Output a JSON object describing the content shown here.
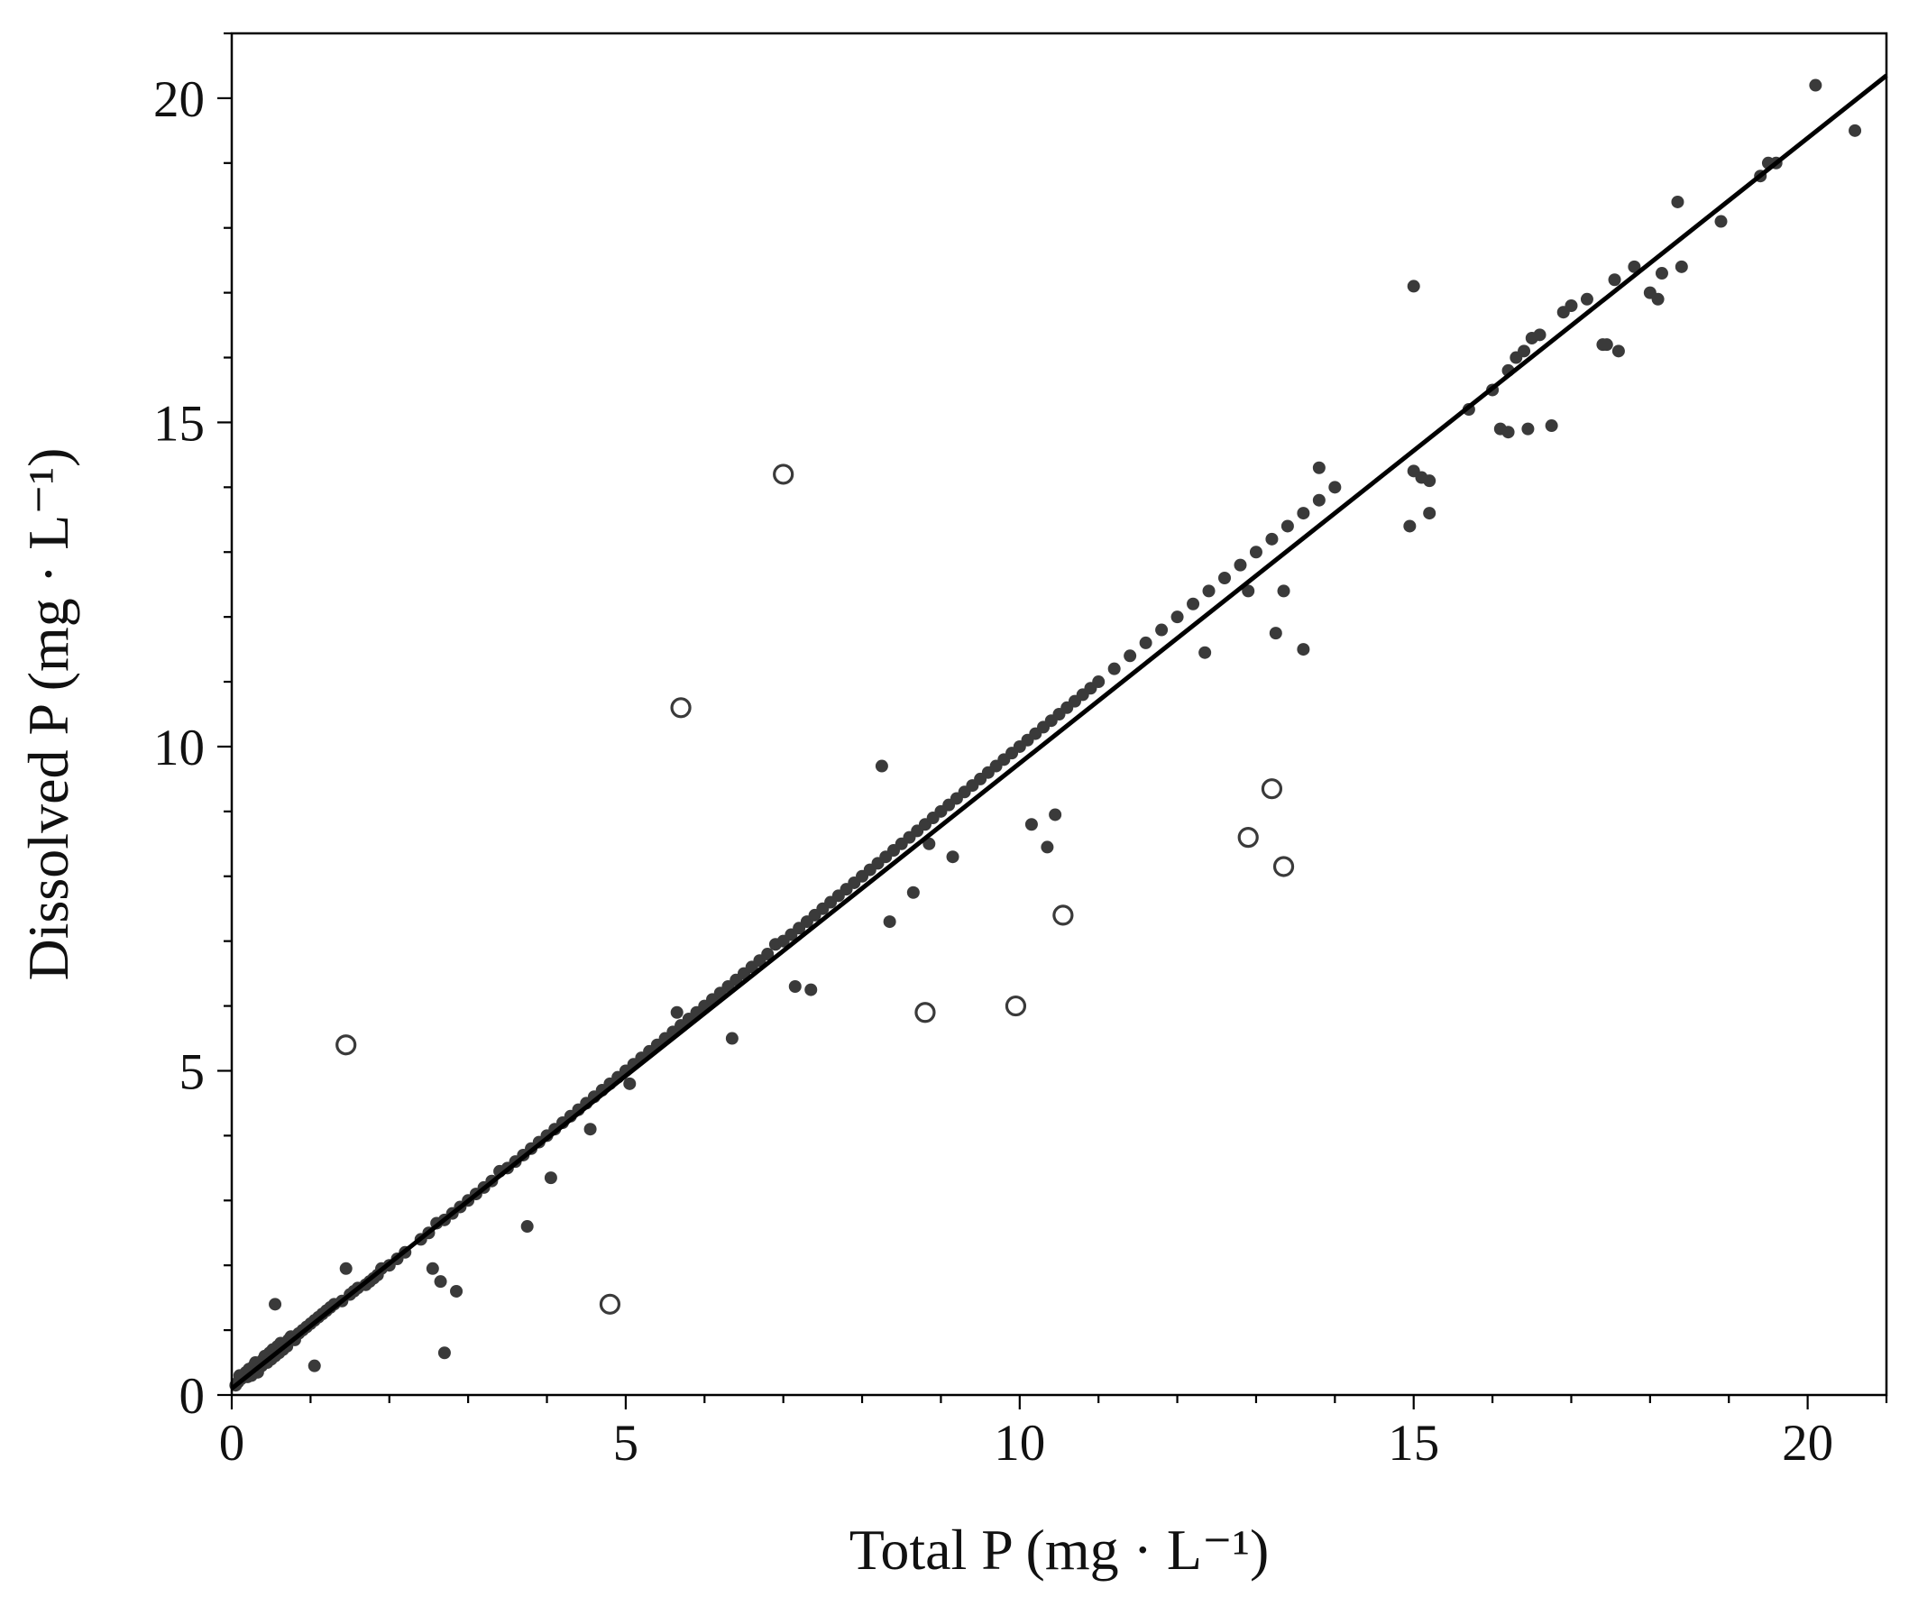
{
  "chart_data": {
    "type": "scatter",
    "title": "",
    "xlabel": "Total P (mg · L⁻¹)",
    "ylabel": "Dissolved P (mg · L⁻¹)",
    "xlim": [
      0,
      21
    ],
    "ylim": [
      0,
      21
    ],
    "x_ticks": [
      "0",
      "5",
      "10",
      "15",
      "20"
    ],
    "y_ticks": [
      "0",
      "5",
      "10",
      "15",
      "20"
    ],
    "x_tick_values": [
      0,
      5,
      10,
      15,
      20
    ],
    "y_tick_values": [
      0,
      5,
      10,
      15,
      20
    ],
    "grid": false,
    "legend": "none",
    "colors": {
      "filled": "#3a3a3a",
      "open_stroke": "#3a3a3a",
      "fit_line": "#000000",
      "axes": "#000000"
    },
    "fit_line": {
      "x": [
        0,
        21
      ],
      "y": [
        0.1,
        20.35
      ]
    },
    "series": [
      {
        "marker": "filled",
        "x": [
          0.05,
          0.08,
          0.1,
          0.12,
          0.15,
          0.18,
          0.2,
          0.22,
          0.25,
          0.28,
          0.3,
          0.33,
          0.35,
          0.38,
          0.4,
          0.42,
          0.45,
          0.48,
          0.5,
          0.52,
          0.55,
          0.58,
          0.6,
          0.62,
          0.65,
          0.7,
          0.72,
          0.75,
          0.8,
          0.85,
          0.9,
          0.95,
          1.0,
          1.05,
          1.1,
          1.15,
          1.2,
          1.25,
          1.3,
          1.4,
          1.5,
          1.55,
          1.6,
          1.7,
          1.75,
          1.8,
          1.85,
          1.9,
          2.0,
          2.1,
          2.2,
          2.4,
          2.5,
          2.6,
          2.7,
          2.8,
          2.9,
          3.0,
          3.1,
          3.2,
          3.3,
          3.4,
          3.5,
          3.6,
          3.7,
          3.8,
          3.9,
          4.0,
          4.1,
          4.2,
          4.3,
          4.4,
          4.5,
          4.6,
          4.7,
          4.8,
          4.9,
          5.0,
          5.1,
          5.2,
          5.3,
          5.4,
          5.5,
          5.6,
          5.7,
          5.8,
          5.9,
          6.0,
          6.1,
          6.2,
          6.3,
          6.4,
          6.5,
          6.6,
          6.7,
          6.8,
          6.9,
          7.0,
          7.1,
          7.2,
          7.3,
          7.4,
          7.5,
          7.6,
          7.7,
          7.8,
          7.9,
          8.0,
          8.1,
          8.2,
          8.3,
          8.4,
          8.5,
          8.6,
          8.7,
          8.8,
          8.9,
          9.0,
          9.1,
          9.2,
          9.3,
          9.4,
          9.5,
          9.6,
          9.7,
          9.8,
          9.9,
          10.0,
          10.1,
          10.2,
          10.3,
          10.4,
          10.5,
          10.6,
          10.7,
          10.8,
          10.9,
          11.0,
          11.2,
          11.4,
          11.6,
          11.8,
          12.0,
          12.2,
          12.4,
          12.6,
          12.8,
          13.0,
          13.2,
          13.4,
          13.6,
          13.8,
          14.0,
          15.0,
          15.1,
          15.2,
          15.7,
          16.0,
          16.1,
          16.2,
          16.3,
          16.4,
          16.5,
          16.6,
          16.9,
          17.0,
          17.2,
          17.4,
          17.6,
          17.8,
          18.0,
          18.1,
          18.4,
          18.9,
          19.4,
          19.5,
          19.6,
          20.1,
          20.6,
          0.55,
          1.05,
          1.45,
          2.55,
          2.65,
          2.7,
          2.85,
          3.75,
          4.05,
          4.55,
          5.05,
          5.65,
          6.35,
          7.15,
          7.35,
          8.25,
          8.35,
          8.65,
          8.85,
          9.15,
          10.15,
          10.35,
          10.45,
          12.35,
          12.9,
          13.25,
          13.35,
          13.6,
          13.8,
          14.95,
          15.2,
          16.2,
          16.45,
          16.75,
          17.45,
          17.55,
          18.15,
          18.35,
          15.0
        ],
        "y": [
          0.15,
          0.2,
          0.3,
          0.25,
          0.3,
          0.35,
          0.28,
          0.4,
          0.3,
          0.45,
          0.5,
          0.35,
          0.5,
          0.45,
          0.55,
          0.6,
          0.5,
          0.65,
          0.55,
          0.7,
          0.6,
          0.75,
          0.65,
          0.8,
          0.7,
          0.75,
          0.85,
          0.9,
          0.85,
          0.95,
          1.0,
          1.05,
          1.1,
          1.15,
          1.2,
          1.25,
          1.3,
          1.35,
          1.4,
          1.45,
          1.55,
          1.6,
          1.65,
          1.7,
          1.75,
          1.8,
          1.85,
          1.95,
          2.0,
          2.1,
          2.2,
          2.4,
          2.5,
          2.65,
          2.7,
          2.8,
          2.9,
          3.0,
          3.1,
          3.2,
          3.3,
          3.45,
          3.5,
          3.6,
          3.7,
          3.8,
          3.9,
          4.0,
          4.1,
          4.2,
          4.3,
          4.4,
          4.5,
          4.6,
          4.7,
          4.8,
          4.9,
          5.0,
          5.1,
          5.2,
          5.3,
          5.4,
          5.5,
          5.6,
          5.7,
          5.8,
          5.9,
          6.0,
          6.1,
          6.2,
          6.3,
          6.4,
          6.5,
          6.6,
          6.7,
          6.8,
          6.95,
          7.0,
          7.1,
          7.2,
          7.3,
          7.4,
          7.5,
          7.6,
          7.7,
          7.8,
          7.9,
          8.0,
          8.1,
          8.2,
          8.3,
          8.4,
          8.5,
          8.6,
          8.7,
          8.8,
          8.9,
          9.0,
          9.1,
          9.2,
          9.3,
          9.4,
          9.5,
          9.6,
          9.7,
          9.8,
          9.9,
          10.0,
          10.1,
          10.2,
          10.3,
          10.4,
          10.5,
          10.6,
          10.7,
          10.8,
          10.9,
          11.0,
          11.2,
          11.4,
          11.6,
          11.8,
          12.0,
          12.2,
          12.4,
          12.6,
          12.8,
          13.0,
          13.2,
          13.4,
          13.6,
          13.8,
          14.0,
          14.25,
          14.15,
          14.1,
          15.2,
          15.5,
          14.9,
          15.8,
          16.0,
          16.1,
          16.3,
          16.35,
          16.7,
          16.8,
          16.9,
          16.2,
          16.1,
          17.4,
          17.0,
          16.9,
          17.4,
          18.1,
          18.8,
          19.0,
          19.0,
          20.2,
          19.5,
          1.4,
          0.45,
          1.95,
          1.95,
          1.75,
          0.65,
          1.6,
          2.6,
          3.35,
          4.1,
          4.8,
          5.9,
          5.5,
          6.3,
          6.25,
          9.7,
          7.3,
          7.75,
          8.5,
          8.3,
          8.8,
          8.45,
          8.95,
          11.45,
          12.4,
          11.75,
          12.4,
          11.5,
          14.3,
          13.4,
          13.6,
          14.85,
          14.9,
          14.95,
          16.2,
          17.2,
          17.3,
          18.4,
          17.1
        ]
      },
      {
        "marker": "open",
        "x": [
          1.45,
          4.8,
          5.7,
          7.0,
          8.8,
          9.95,
          10.55,
          12.9,
          13.2,
          13.35
        ],
        "y": [
          5.4,
          1.4,
          10.6,
          14.2,
          5.9,
          6.0,
          7.4,
          8.6,
          9.35,
          8.15
        ]
      }
    ]
  }
}
